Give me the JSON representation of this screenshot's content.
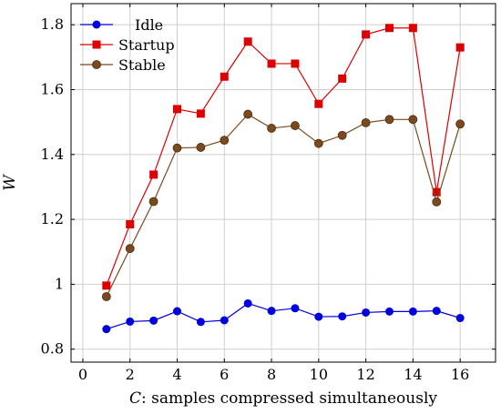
{
  "chart_data": {
    "type": "line",
    "xlabel": "C: samples compressed simultaneously",
    "xlabel_italic_part": "C",
    "xlabel_rest": ": samples compressed simultaneously",
    "ylabel": "W",
    "xlim": [
      -0.5,
      17.5
    ],
    "ylim": [
      0.76,
      1.865
    ],
    "xticks": [
      0,
      2,
      4,
      6,
      8,
      10,
      12,
      14,
      16
    ],
    "yticks": [
      0.8,
      1,
      1.2,
      1.4,
      1.6,
      1.8
    ],
    "ytick_labels": [
      "0.8",
      "1",
      "1.2",
      "1.4",
      "1.6",
      "1.8"
    ],
    "grid": true,
    "legend_position": "top-left",
    "x": [
      1,
      2,
      3,
      4,
      5,
      6,
      7,
      8,
      9,
      10,
      11,
      12,
      13,
      14,
      15,
      16
    ],
    "series": [
      {
        "name": "Idle",
        "color": "#0000dd",
        "marker": "circle",
        "values": [
          0.862,
          0.885,
          0.888,
          0.917,
          0.884,
          0.889,
          0.941,
          0.918,
          0.926,
          0.9,
          0.901,
          0.913,
          0.916,
          0.916,
          0.918,
          0.896
        ]
      },
      {
        "name": "Startup",
        "color": "#dd0000",
        "marker": "square",
        "values": [
          0.996,
          1.185,
          1.338,
          1.54,
          1.526,
          1.64,
          1.748,
          1.68,
          1.68,
          1.556,
          1.634,
          1.77,
          1.79,
          1.79,
          1.284,
          1.73
        ]
      },
      {
        "name": "Stable",
        "color": "#7a4a1e",
        "marker": "circle",
        "values": [
          0.962,
          1.11,
          1.255,
          1.42,
          1.422,
          1.444,
          1.524,
          1.481,
          1.489,
          1.434,
          1.459,
          1.498,
          1.508,
          1.508,
          1.254,
          1.494
        ]
      }
    ]
  }
}
